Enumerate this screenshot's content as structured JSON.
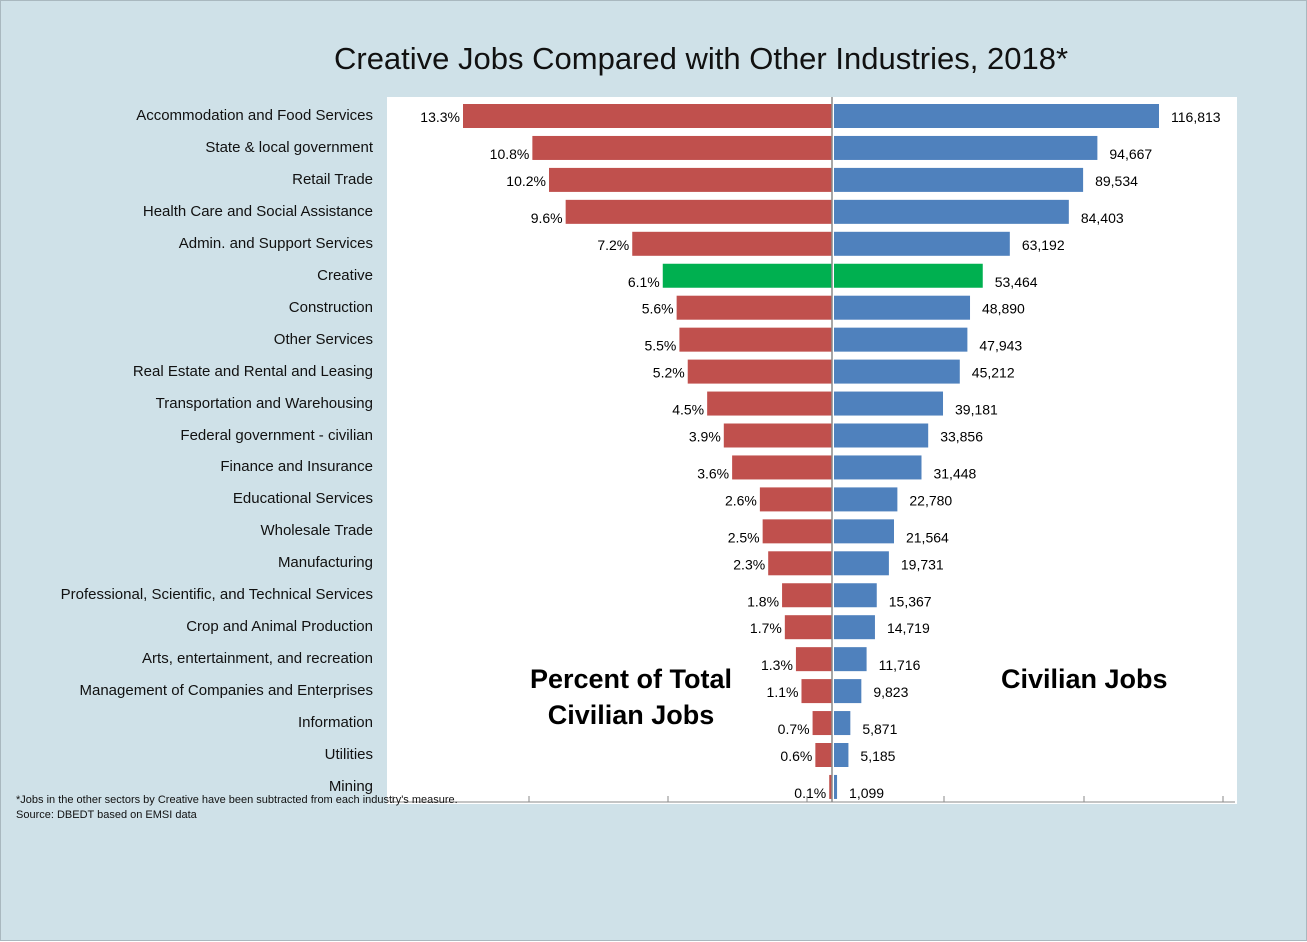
{
  "chart_data": {
    "type": "bar",
    "title": "Creative Jobs Compared with Other Industries, 2018*",
    "left_panel_label": "Percent of Total Civilian Jobs",
    "right_panel_label": "Civilian Jobs",
    "highlight_category": "Creative",
    "colors": {
      "percent": "#c0504d",
      "jobs": "#4f81bd",
      "highlight": "#00b050"
    },
    "categories": [
      "Accommodation and Food Services",
      "State & local government",
      "Retail Trade",
      "Health Care and Social Assistance",
      "Admin. and Support  Services",
      "Creative",
      "Construction",
      "Other Services",
      "Real Estate and Rental and Leasing",
      "Transportation and Warehousing",
      "Federal government - civilian",
      "Finance and Insurance",
      "Educational Services",
      "Wholesale Trade",
      "Manufacturing",
      "Professional, Scientific, and Technical Services",
      "Crop and Animal Production",
      "Arts, entertainment, and recreation",
      "Management of Companies and Enterprises",
      "Information",
      "Utilities",
      "Mining"
    ],
    "series": [
      {
        "name": "Percent of Total Civilian Jobs",
        "values": [
          13.3,
          10.8,
          10.2,
          9.6,
          7.2,
          6.1,
          5.6,
          5.5,
          5.2,
          4.5,
          3.9,
          3.6,
          2.6,
          2.5,
          2.3,
          1.8,
          1.7,
          1.3,
          1.1,
          0.7,
          0.6,
          0.1
        ],
        "labels": [
          "13.3%",
          "10.8%",
          "10.2%",
          "9.6%",
          "7.2%",
          "6.1%",
          "5.6%",
          "5.5%",
          "5.2%",
          "4.5%",
          "3.9%",
          "3.6%",
          "2.6%",
          "2.5%",
          "2.3%",
          "1.8%",
          "1.7%",
          "1.3%",
          "1.1%",
          "0.7%",
          "0.6%",
          "0.1%"
        ]
      },
      {
        "name": "Civilian Jobs",
        "values": [
          116813,
          94667,
          89534,
          84403,
          63192,
          53464,
          48890,
          47943,
          45212,
          39181,
          33856,
          31448,
          22780,
          21564,
          19731,
          15367,
          14719,
          11716,
          9823,
          5871,
          5185,
          1099
        ],
        "labels": [
          "116,813",
          "94,667",
          "89,534",
          "84,403",
          "63,192",
          "53,464",
          "48,890",
          "47,943",
          "45,212",
          "39,181",
          "33,856",
          "31,448",
          "22,780",
          "21,564",
          "19,731",
          "15,367",
          "14,719",
          "11,716",
          "9,823",
          "5,871",
          "5,185",
          "1,099"
        ]
      }
    ],
    "grid": false
  },
  "footnote": {
    "line1": "*Jobs in the other sectors by Creative have been subtracted from each industry's measure.",
    "line2": "Source:  DBEDT based on EMSI data"
  }
}
